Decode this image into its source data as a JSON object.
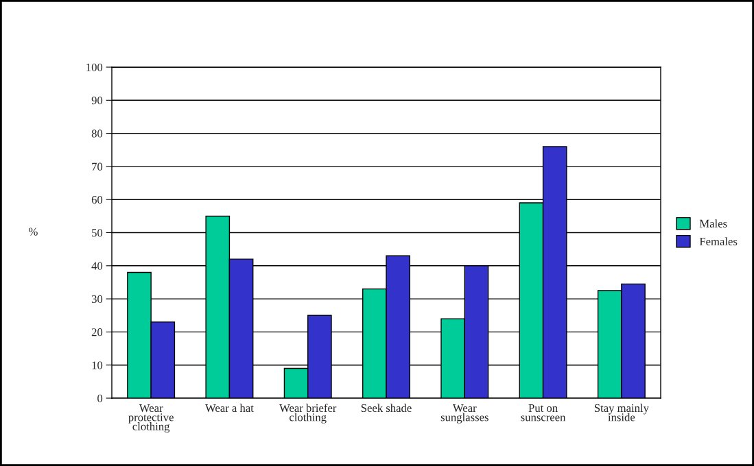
{
  "chart_data": {
    "type": "bar",
    "ylabel": "%",
    "categories": [
      "Wear\nprotective\nclothing",
      "Wear a hat",
      "Wear briefer\nclothing",
      "Seek shade",
      "Wear\nsunglasses",
      "Put on\nsunscreen",
      "Stay mainly\ninside"
    ],
    "series": [
      {
        "name": "Males",
        "color": "#00cc99",
        "values": [
          38,
          55,
          9,
          33,
          24,
          59,
          32.5
        ]
      },
      {
        "name": "Females",
        "color": "#3333cc",
        "values": [
          23,
          42,
          25,
          43,
          40,
          76,
          34.5
        ]
      }
    ],
    "ylim": [
      0,
      100
    ],
    "yticks": [
      0,
      10,
      20,
      30,
      40,
      50,
      60,
      70,
      80,
      90,
      100
    ],
    "grid": "y",
    "legend": "right"
  }
}
